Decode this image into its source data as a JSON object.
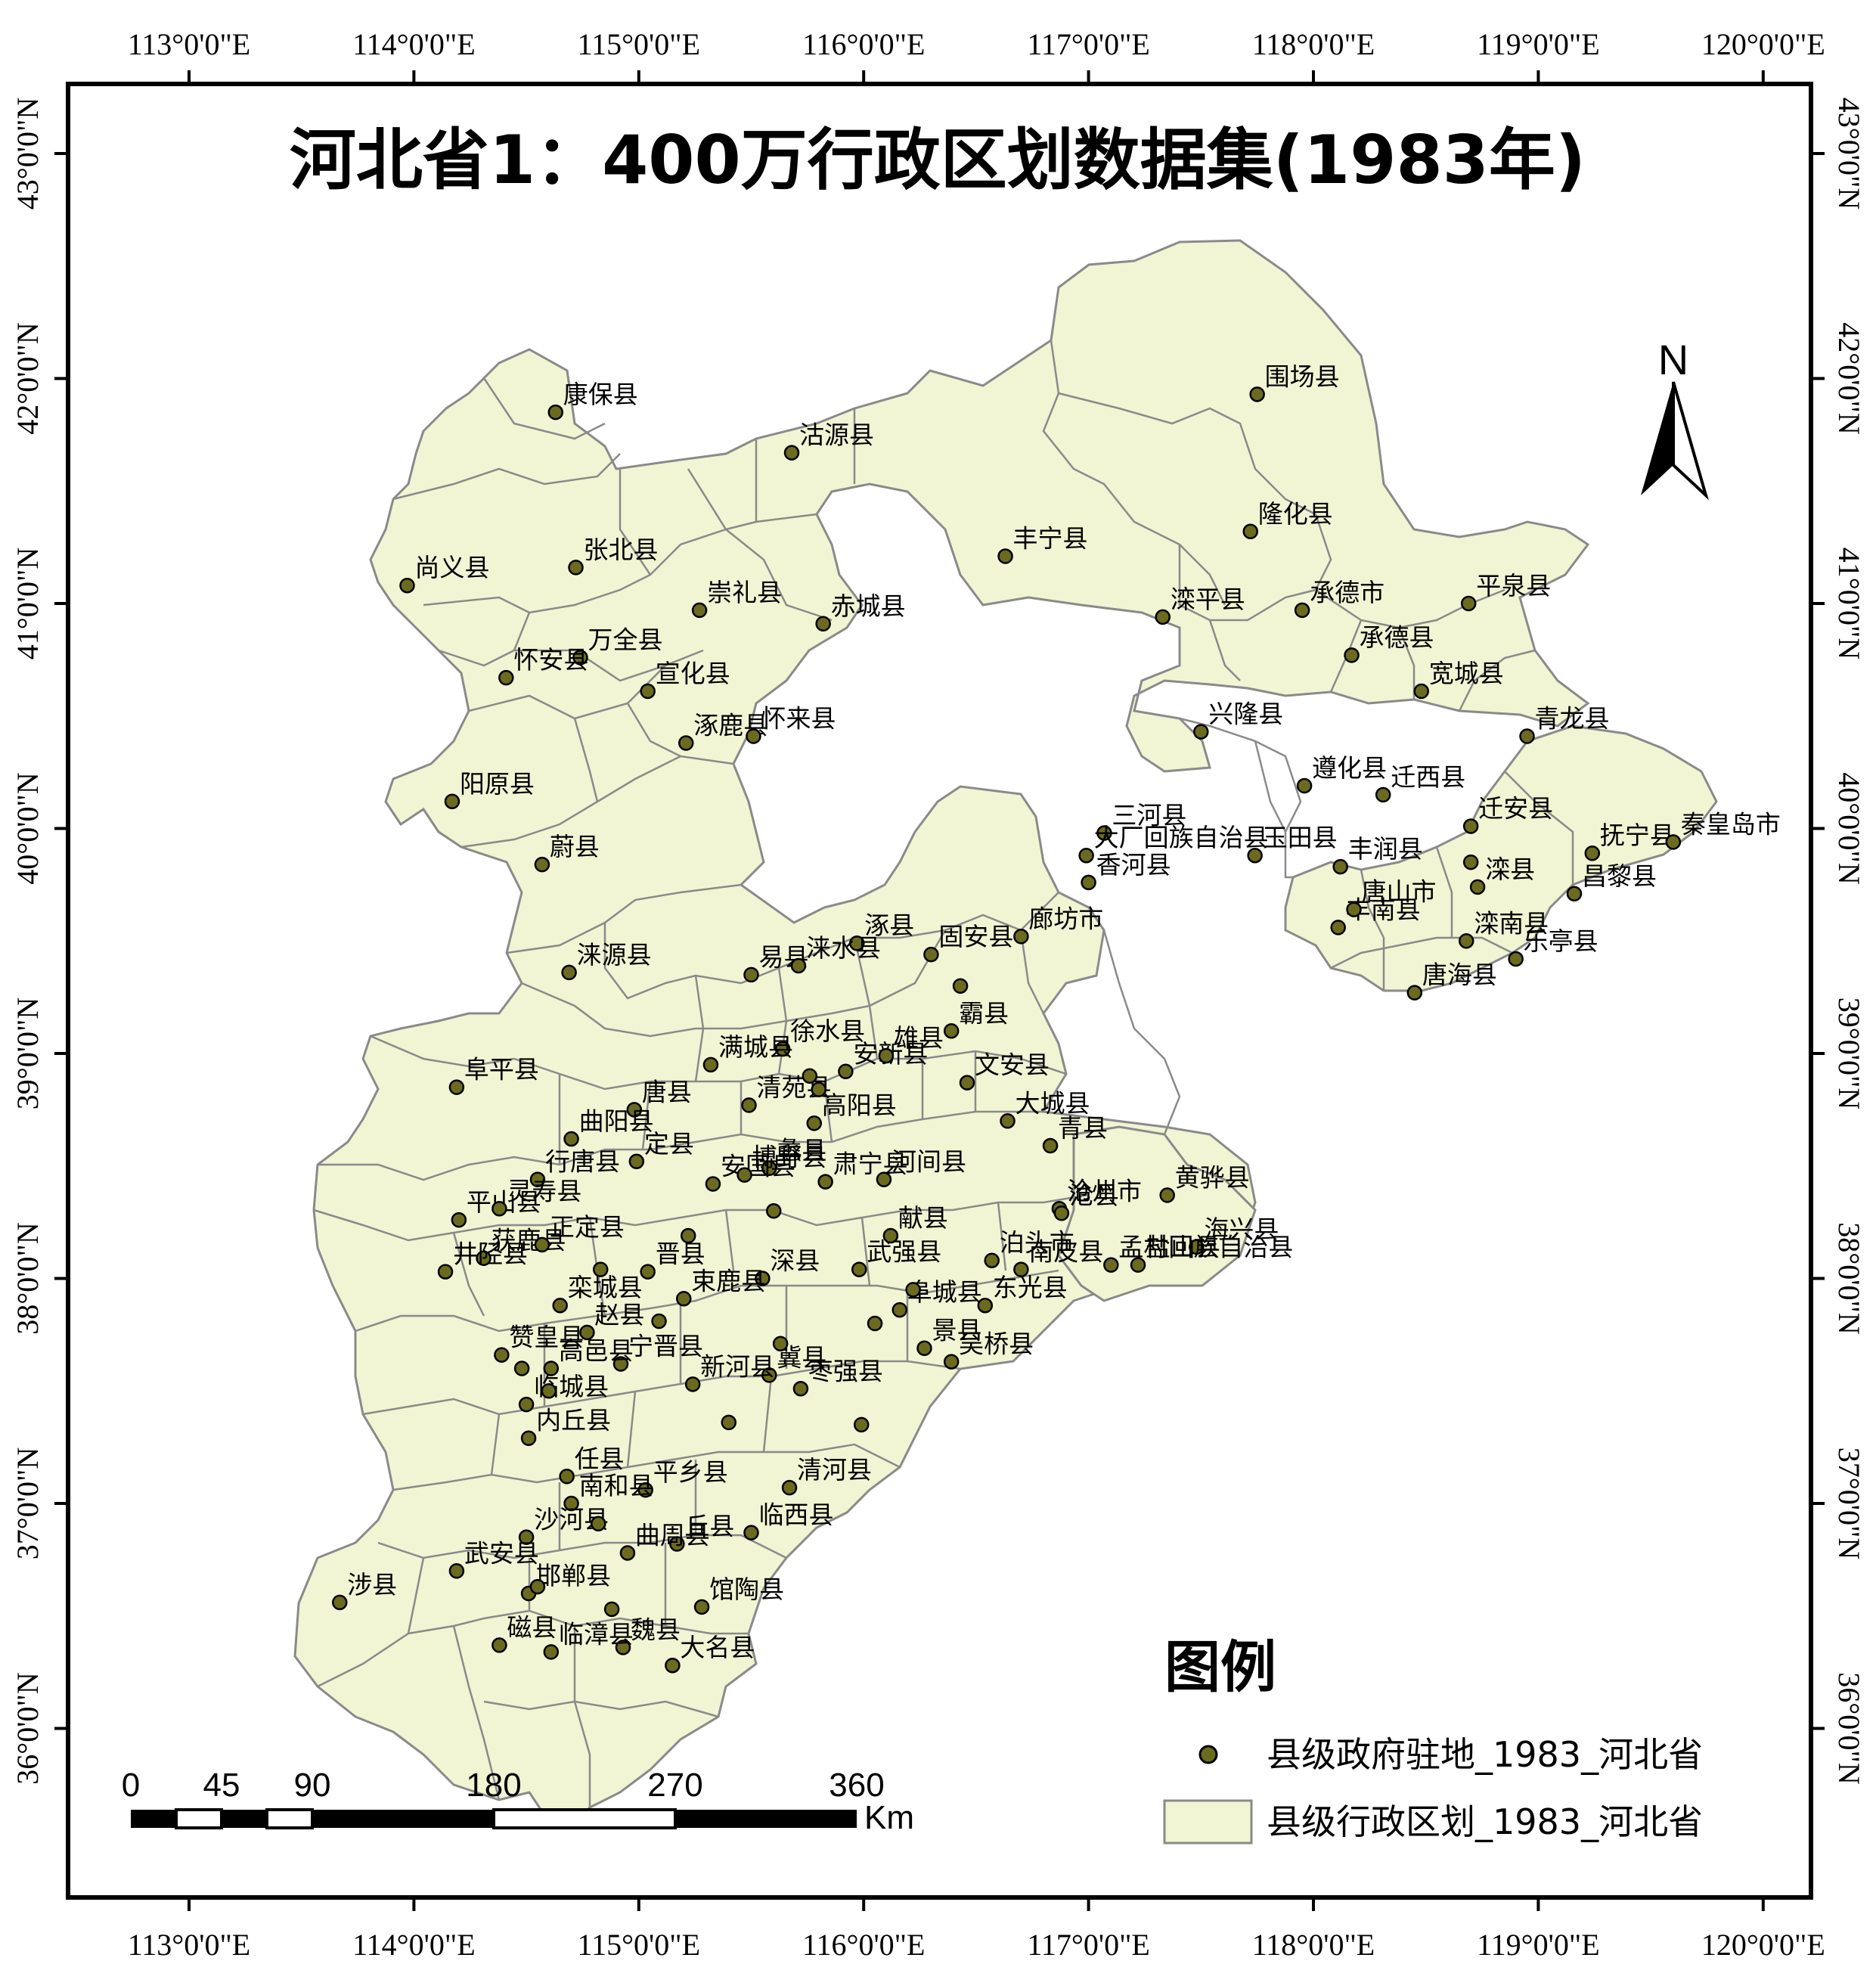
{
  "title": "河北省1：400万行政区划数据集(1983年)",
  "north_label": "N",
  "legend": {
    "title": "图例",
    "point_label": "县级政府驻地_1983_河北省",
    "polygon_label": "县级行政区划_1983_河北省"
  },
  "scale_bar": {
    "labels": [
      "0",
      "45",
      "90",
      "180",
      "270",
      "360"
    ],
    "unit": "Km"
  },
  "longitude_ticks": [
    "113°0'0\"E",
    "114°0'0\"E",
    "115°0'0\"E",
    "116°0'0\"E",
    "117°0'0\"E",
    "118°0'0\"E",
    "119°0'0\"E",
    "120°0'0\"E"
  ],
  "latitude_ticks": [
    "43°0'0\"N",
    "42°0'0\"N",
    "41°0'0\"N",
    "40°0'0\"N",
    "39°0'0\"N",
    "38°0'0\"N",
    "37°0'0\"N",
    "36°0'0\"N"
  ],
  "colors": {
    "land_fill": "#f1f5d3",
    "border": "#8a8a8a",
    "point_fill": "#6b6b1f",
    "frame": "#000000"
  },
  "places": [
    {
      "name": "康保县",
      "lon": 114.63,
      "lat": 41.85
    },
    {
      "name": "沽源县",
      "lon": 115.68,
      "lat": 41.67
    },
    {
      "name": "围场县",
      "lon": 117.75,
      "lat": 41.93
    },
    {
      "name": "尚义县",
      "lon": 113.97,
      "lat": 41.08
    },
    {
      "name": "张北县",
      "lon": 114.72,
      "lat": 41.16
    },
    {
      "name": "丰宁县",
      "lon": 116.63,
      "lat": 41.21
    },
    {
      "name": "隆化县",
      "lon": 117.72,
      "lat": 41.32
    },
    {
      "name": "崇礼县",
      "lon": 115.27,
      "lat": 40.97
    },
    {
      "name": "赤城县",
      "lon": 115.82,
      "lat": 40.91
    },
    {
      "name": "滦平县",
      "lon": 117.33,
      "lat": 40.94
    },
    {
      "name": "承德市",
      "lon": 117.95,
      "lat": 40.97
    },
    {
      "name": "平泉县",
      "lon": 118.69,
      "lat": 41.0
    },
    {
      "name": "万全县",
      "lon": 114.74,
      "lat": 40.76
    },
    {
      "name": "怀安县",
      "lon": 114.41,
      "lat": 40.67
    },
    {
      "name": "宣化县",
      "lon": 115.04,
      "lat": 40.61
    },
    {
      "name": "承德县",
      "lon": 118.17,
      "lat": 40.77
    },
    {
      "name": "宽城县",
      "lon": 118.48,
      "lat": 40.61
    },
    {
      "name": "涿鹿县",
      "lon": 115.21,
      "lat": 40.38
    },
    {
      "name": "怀来县",
      "lon": 115.51,
      "lat": 40.41
    },
    {
      "name": "兴隆县",
      "lon": 117.5,
      "lat": 40.43
    },
    {
      "name": "青龙县",
      "lon": 118.95,
      "lat": 40.41
    },
    {
      "name": "阳原县",
      "lon": 114.17,
      "lat": 40.12
    },
    {
      "name": "遵化县",
      "lon": 117.96,
      "lat": 40.19
    },
    {
      "name": "迁西县",
      "lon": 118.31,
      "lat": 40.15
    },
    {
      "name": "三河县",
      "lon": 117.07,
      "lat": 39.98
    },
    {
      "name": "大厂回族自治县",
      "lon": 116.99,
      "lat": 39.88
    },
    {
      "name": "迁安县",
      "lon": 118.7,
      "lat": 40.01
    },
    {
      "name": "抚宁县",
      "lon": 119.24,
      "lat": 39.89
    },
    {
      "name": "秦皇岛市",
      "lon": 119.6,
      "lat": 39.94
    },
    {
      "name": "蔚县",
      "lon": 114.57,
      "lat": 39.84
    },
    {
      "name": "香河县",
      "lon": 117.0,
      "lat": 39.76
    },
    {
      "name": "玉田县",
      "lon": 117.74,
      "lat": 39.88
    },
    {
      "name": "丰润县",
      "lon": 118.12,
      "lat": 39.83
    },
    {
      "name": "滦县",
      "lon": 118.73,
      "lat": 39.74
    },
    {
      "name": "昌黎县",
      "lon": 119.16,
      "lat": 39.71
    },
    {
      "name": "丰南县",
      "lon": 118.11,
      "lat": 39.56
    },
    {
      "name": "唐山市",
      "lon": 118.18,
      "lat": 39.64
    },
    {
      "name": "滦南县",
      "lon": 118.68,
      "lat": 39.5
    },
    {
      "name": "乐亭县",
      "lon": 118.9,
      "lat": 39.42
    },
    {
      "name": "唐海县",
      "lon": 118.45,
      "lat": 39.27
    },
    {
      "name": "涿县",
      "lon": 115.97,
      "lat": 39.49
    },
    {
      "name": "固安县",
      "lon": 116.3,
      "lat": 39.44
    },
    {
      "name": "廊坊市",
      "lon": 116.7,
      "lat": 39.52
    },
    {
      "name": "涞源县",
      "lon": 114.69,
      "lat": 39.36
    },
    {
      "name": "易县",
      "lon": 115.5,
      "lat": 39.35
    },
    {
      "name": "涞水县",
      "lon": 115.71,
      "lat": 39.39
    },
    {
      "name": "霸县",
      "lon": 116.39,
      "lat": 39.1
    },
    {
      "name": "徐水县",
      "lon": 115.64,
      "lat": 39.02
    },
    {
      "name": "满城县",
      "lon": 115.32,
      "lat": 38.95
    },
    {
      "name": "安新县",
      "lon": 115.92,
      "lat": 38.92
    },
    {
      "name": "雄县",
      "lon": 116.1,
      "lat": 38.99
    },
    {
      "name": "文安县",
      "lon": 116.46,
      "lat": 38.87
    },
    {
      "name": "阜平县",
      "lon": 114.19,
      "lat": 38.85
    },
    {
      "name": "唐县",
      "lon": 114.98,
      "lat": 38.75
    },
    {
      "name": "清苑县",
      "lon": 115.49,
      "lat": 38.77
    },
    {
      "name": "高阳县",
      "lon": 115.78,
      "lat": 38.69
    },
    {
      "name": "大城县",
      "lon": 116.64,
      "lat": 38.7
    },
    {
      "name": "曲阳县",
      "lon": 114.7,
      "lat": 38.62
    },
    {
      "name": "定县",
      "lon": 114.99,
      "lat": 38.52
    },
    {
      "name": "蠡县",
      "lon": 115.58,
      "lat": 38.49
    },
    {
      "name": "青县",
      "lon": 116.83,
      "lat": 38.59
    },
    {
      "name": "行唐县",
      "lon": 114.55,
      "lat": 38.44
    },
    {
      "name": "河间县",
      "lon": 116.09,
      "lat": 38.44
    },
    {
      "name": "黄骅县",
      "lon": 117.35,
      "lat": 38.37
    },
    {
      "name": "平山县",
      "lon": 114.2,
      "lat": 38.26
    },
    {
      "name": "安国县",
      "lon": 115.33,
      "lat": 38.42
    },
    {
      "name": "博野县",
      "lon": 115.47,
      "lat": 38.46
    },
    {
      "name": "肃宁县",
      "lon": 115.83,
      "lat": 38.43
    },
    {
      "name": "献县",
      "lon": 116.12,
      "lat": 38.19
    },
    {
      "name": "沧州市",
      "lon": 116.87,
      "lat": 38.31
    },
    {
      "name": "沧县",
      "lon": 116.88,
      "lat": 38.29
    },
    {
      "name": "海兴县",
      "lon": 117.48,
      "lat": 38.14
    },
    {
      "name": "获鹿县",
      "lon": 114.31,
      "lat": 38.09
    },
    {
      "name": "灵寿县",
      "lon": 114.38,
      "lat": 38.31
    },
    {
      "name": "晋县",
      "lon": 115.04,
      "lat": 38.03
    },
    {
      "name": "深县",
      "lon": 115.55,
      "lat": 38.0
    },
    {
      "name": "泊头市",
      "lon": 116.57,
      "lat": 38.08
    },
    {
      "name": "南皮县",
      "lon": 116.7,
      "lat": 38.04
    },
    {
      "name": "盐山县",
      "lon": 117.22,
      "lat": 38.06
    },
    {
      "name": "孟村回族自治县",
      "lon": 117.1,
      "lat": 38.06
    },
    {
      "name": "井陉县",
      "lon": 114.14,
      "lat": 38.03
    },
    {
      "name": "正定县",
      "lon": 114.57,
      "lat": 38.15
    },
    {
      "name": "束鹿县",
      "lon": 115.2,
      "lat": 37.91
    },
    {
      "name": "武强县",
      "lon": 115.98,
      "lat": 38.04
    },
    {
      "name": "东光县",
      "lon": 116.54,
      "lat": 37.88
    },
    {
      "name": "赵县",
      "lon": 114.77,
      "lat": 37.76
    },
    {
      "name": "赞皇县",
      "lon": 114.39,
      "lat": 37.66
    },
    {
      "name": "栾城县",
      "lon": 114.65,
      "lat": 37.88
    },
    {
      "name": "阜城县",
      "lon": 116.16,
      "lat": 37.86
    },
    {
      "name": "景县",
      "lon": 116.27,
      "lat": 37.69
    },
    {
      "name": "宁晋县",
      "lon": 114.92,
      "lat": 37.62
    },
    {
      "name": "冀县",
      "lon": 115.58,
      "lat": 37.57
    },
    {
      "name": "吴桥县",
      "lon": 116.39,
      "lat": 37.63
    },
    {
      "name": "临城县",
      "lon": 114.5,
      "lat": 37.44
    },
    {
      "name": "高邑县",
      "lon": 114.61,
      "lat": 37.6
    },
    {
      "name": "新河县",
      "lon": 115.24,
      "lat": 37.53
    },
    {
      "name": "枣强县",
      "lon": 115.72,
      "lat": 37.51
    },
    {
      "name": "内丘县",
      "lon": 114.51,
      "lat": 37.29
    },
    {
      "name": "任县",
      "lon": 114.68,
      "lat": 37.12
    },
    {
      "name": "平乡县",
      "lon": 115.03,
      "lat": 37.06
    },
    {
      "name": "清河县",
      "lon": 115.67,
      "lat": 37.07
    },
    {
      "name": "南和县",
      "lon": 114.7,
      "lat": 37.0
    },
    {
      "name": "沙河县",
      "lon": 114.5,
      "lat": 36.85
    },
    {
      "name": "丘县",
      "lon": 115.17,
      "lat": 36.82
    },
    {
      "name": "临西县",
      "lon": 115.5,
      "lat": 36.87
    },
    {
      "name": "武安县",
      "lon": 114.19,
      "lat": 36.7
    },
    {
      "name": "邯郸县",
      "lon": 114.51,
      "lat": 36.6
    },
    {
      "name": "曲周县",
      "lon": 114.95,
      "lat": 36.78
    },
    {
      "name": "涉县",
      "lon": 113.67,
      "lat": 36.56
    },
    {
      "name": "馆陶县",
      "lon": 115.28,
      "lat": 36.54
    },
    {
      "name": "磁县",
      "lon": 114.38,
      "lat": 36.37
    },
    {
      "name": "魏县",
      "lon": 114.93,
      "lat": 36.36
    },
    {
      "name": "临漳县",
      "lon": 114.61,
      "lat": 36.34
    },
    {
      "name": "大名县",
      "lon": 115.15,
      "lat": 36.28
    },
    {
      "name": "",
      "lon": 115.22,
      "lat": 38.19
    },
    {
      "name": "",
      "lon": 114.83,
      "lat": 38.04
    },
    {
      "name": "",
      "lon": 115.6,
      "lat": 38.3
    },
    {
      "name": "",
      "lon": 115.8,
      "lat": 38.84
    },
    {
      "name": "",
      "lon": 116.43,
      "lat": 39.3
    },
    {
      "name": "",
      "lon": 115.76,
      "lat": 38.9
    },
    {
      "name": "",
      "lon": 116.05,
      "lat": 37.8
    },
    {
      "name": "",
      "lon": 115.99,
      "lat": 37.35
    },
    {
      "name": "",
      "lon": 115.4,
      "lat": 37.36
    },
    {
      "name": "",
      "lon": 114.82,
      "lat": 36.91
    },
    {
      "name": "",
      "lon": 114.55,
      "lat": 36.63
    },
    {
      "name": "",
      "lon": 114.88,
      "lat": 36.53
    },
    {
      "name": "",
      "lon": 114.48,
      "lat": 37.6
    },
    {
      "name": "",
      "lon": 114.6,
      "lat": 37.5
    },
    {
      "name": "",
      "lon": 115.09,
      "lat": 37.81
    },
    {
      "name": "",
      "lon": 115.63,
      "lat": 37.71
    },
    {
      "name": "",
      "lon": 116.22,
      "lat": 37.95
    },
    {
      "name": "",
      "lon": 118.7,
      "lat": 39.85
    }
  ]
}
